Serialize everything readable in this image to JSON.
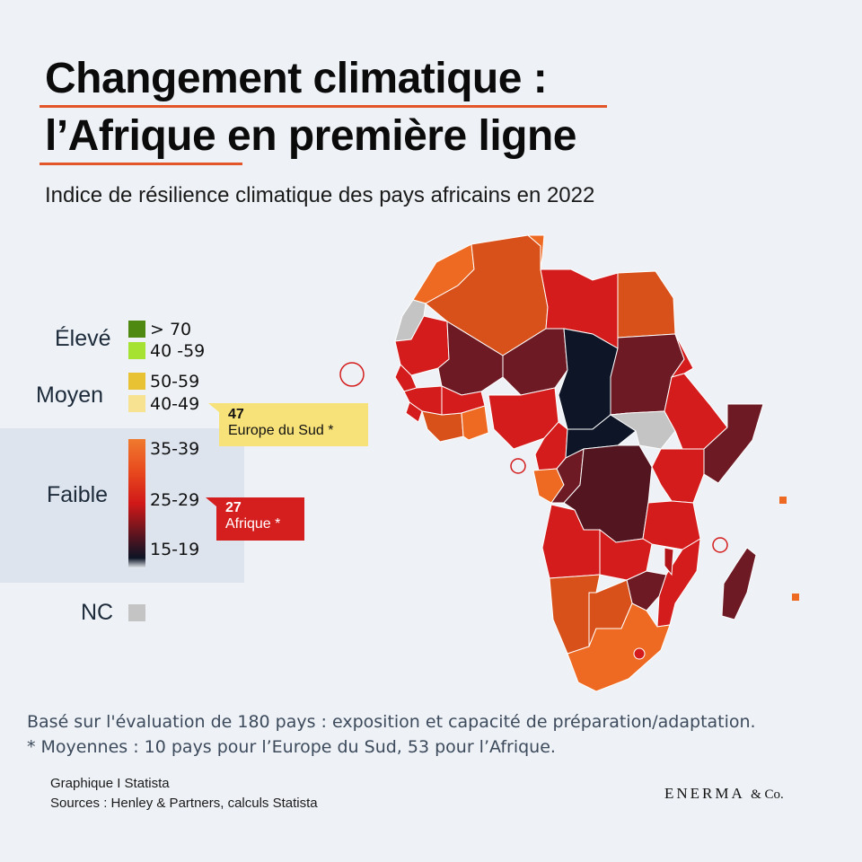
{
  "title": {
    "line1": "Changement climatique :",
    "line2_part1": "l’Afrique",
    "line2_part2": " en première ligne"
  },
  "subtitle": "Indice de résilience climatique des pays africains en 2022",
  "legend": {
    "high": {
      "label": "Élevé",
      "ranges": [
        "> 70",
        "40 -59"
      ],
      "colors": [
        "#4e8a12",
        "#a6e232"
      ]
    },
    "medium": {
      "label": "Moyen",
      "ranges": [
        "50-59",
        "40-49"
      ],
      "colors": [
        "#e8c232",
        "#f6e290"
      ]
    },
    "low": {
      "label": "Faible",
      "ranges": [
        "35-39",
        "25-29",
        "15-19"
      ]
    },
    "nc": {
      "label": "NC",
      "color": "#c4c4c4"
    }
  },
  "callouts": {
    "europe": {
      "value": "47",
      "label": "Europe du Sud *"
    },
    "africa": {
      "value": "27",
      "label": "Afrique *"
    }
  },
  "notes": {
    "line1": "Basé sur l'évaluation de 180 pays : exposition et capacité de préparation/adaptation.",
    "line2": "* Moyennes : 10 pays pour l’Europe du Sud, 53 pour l’Afrique."
  },
  "source": {
    "line1": "Graphique I Statista",
    "line2": "Sources : Henley & Partners, calculs Statista"
  },
  "brand": {
    "name": "ENERMA",
    "suffix": "& Co."
  },
  "map_colors": {
    "orange": "#ee6a22",
    "orange_dark": "#d8501a",
    "red": "#d41c1c",
    "red_dark": "#b01418",
    "maroon": "#6e1a24",
    "maroon_dark": "#531520",
    "black": "#0e1526",
    "nc": "#c4c4c4"
  }
}
